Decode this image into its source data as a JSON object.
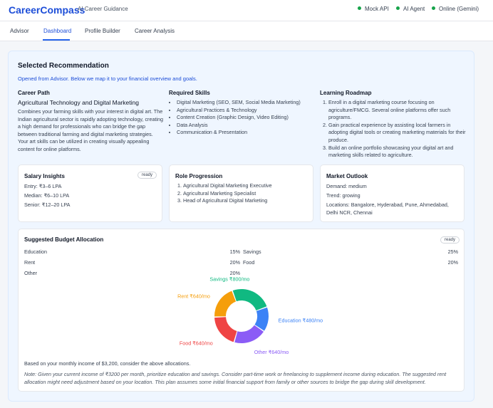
{
  "header": {
    "brand": "CareerCompass",
    "tagline": "AI Career Guidance",
    "status": [
      "Mock API",
      "AI Agent",
      "Online (Gemini)"
    ],
    "status_color": "#16a34a"
  },
  "nav": {
    "tabs": [
      {
        "label": "Advisor"
      },
      {
        "label": "Dashboard",
        "active": true
      },
      {
        "label": "Profile Builder"
      },
      {
        "label": "Career Analysis"
      }
    ]
  },
  "recommendation": {
    "title": "Selected Recommendation",
    "subtitle": "Opened from Advisor. Below we map it to your financial overview and goals.",
    "career_path_heading": "Career Path",
    "career_name": "Agricultural Technology and Digital Marketing",
    "description": "Combines your farming skills with your interest in digital art. The Indian agricultural sector is rapidly adopting technology, creating a high demand for professionals who can bridge the gap between traditional farming and digital marketing strategies. Your art skills can be utilized in creating visually appealing content for online platforms.",
    "skills_heading": "Required Skills",
    "skills": [
      "Digital Marketing (SEO, SEM, Social Media Marketing)",
      "Agricultural Practices & Technology",
      "Content Creation (Graphic Design, Video Editing)",
      "Data Analysis",
      "Communication & Presentation"
    ],
    "roadmap_heading": "Learning Roadmap",
    "roadmap": [
      "Enroll in a digital marketing course focusing on agriculture/FMCG. Several online platforms offer such programs.",
      "Gain practical experience by assisting local farmers in adopting digital tools or creating marketing materials for their produce.",
      "Build an online portfolio showcasing your digital art and marketing skills related to agriculture."
    ]
  },
  "salary": {
    "title": "Salary Insights",
    "badge": "ready",
    "entry": "Entry: ₹3–6 LPA",
    "median": "Median: ₹6–10 LPA",
    "senior": "Senior: ₹12–20 LPA"
  },
  "role": {
    "title": "Role Progression",
    "steps": [
      "Agricultural Digital Marketing Executive",
      "Agricultural Marketing Specialist",
      "Head of Agricultural Digital Marketing"
    ]
  },
  "market": {
    "title": "Market Outlook",
    "demand": "Demand: medium",
    "trend": "Trend: growing",
    "locations": "Locations: Bangalore, Hyderabad, Pune, Ahmedabad, Delhi NCR, Chennai"
  },
  "budget": {
    "title": "Suggested Budget Allocation",
    "badge": "ready",
    "left": [
      {
        "label": "Education",
        "pct": "15%"
      },
      {
        "label": "Rent",
        "pct": "20%"
      },
      {
        "label": "Other",
        "pct": "20%"
      }
    ],
    "right": [
      {
        "label": "Savings",
        "pct": "25%"
      },
      {
        "label": "Food",
        "pct": "20%"
      }
    ],
    "footnote": "Based on your monthly income of $3,200, consider the above allocations.",
    "note": "Note: Given your current income of ₹3200 per month, prioritize education and savings. Consider part-time work or freelancing to supplement income during education. The suggested rent allocation might need adjustment based on your location. This plan assumes some initial financial support from family or other sources to bridge the gap during skill development."
  },
  "chart_data": {
    "type": "pie",
    "donut": true,
    "slices": [
      {
        "label": "Education ₹480/mo",
        "value": 15,
        "color": "#3b82f6"
      },
      {
        "label": "Other ₹640/mo",
        "value": 20,
        "color": "#8b5cf6"
      },
      {
        "label": "Food ₹640/mo",
        "value": 20,
        "color": "#ef4444"
      },
      {
        "label": "Rent ₹640/mo",
        "value": 20,
        "color": "#f59e0b"
      },
      {
        "label": "Savings ₹800/mo",
        "value": 25,
        "color": "#10b981"
      }
    ]
  }
}
